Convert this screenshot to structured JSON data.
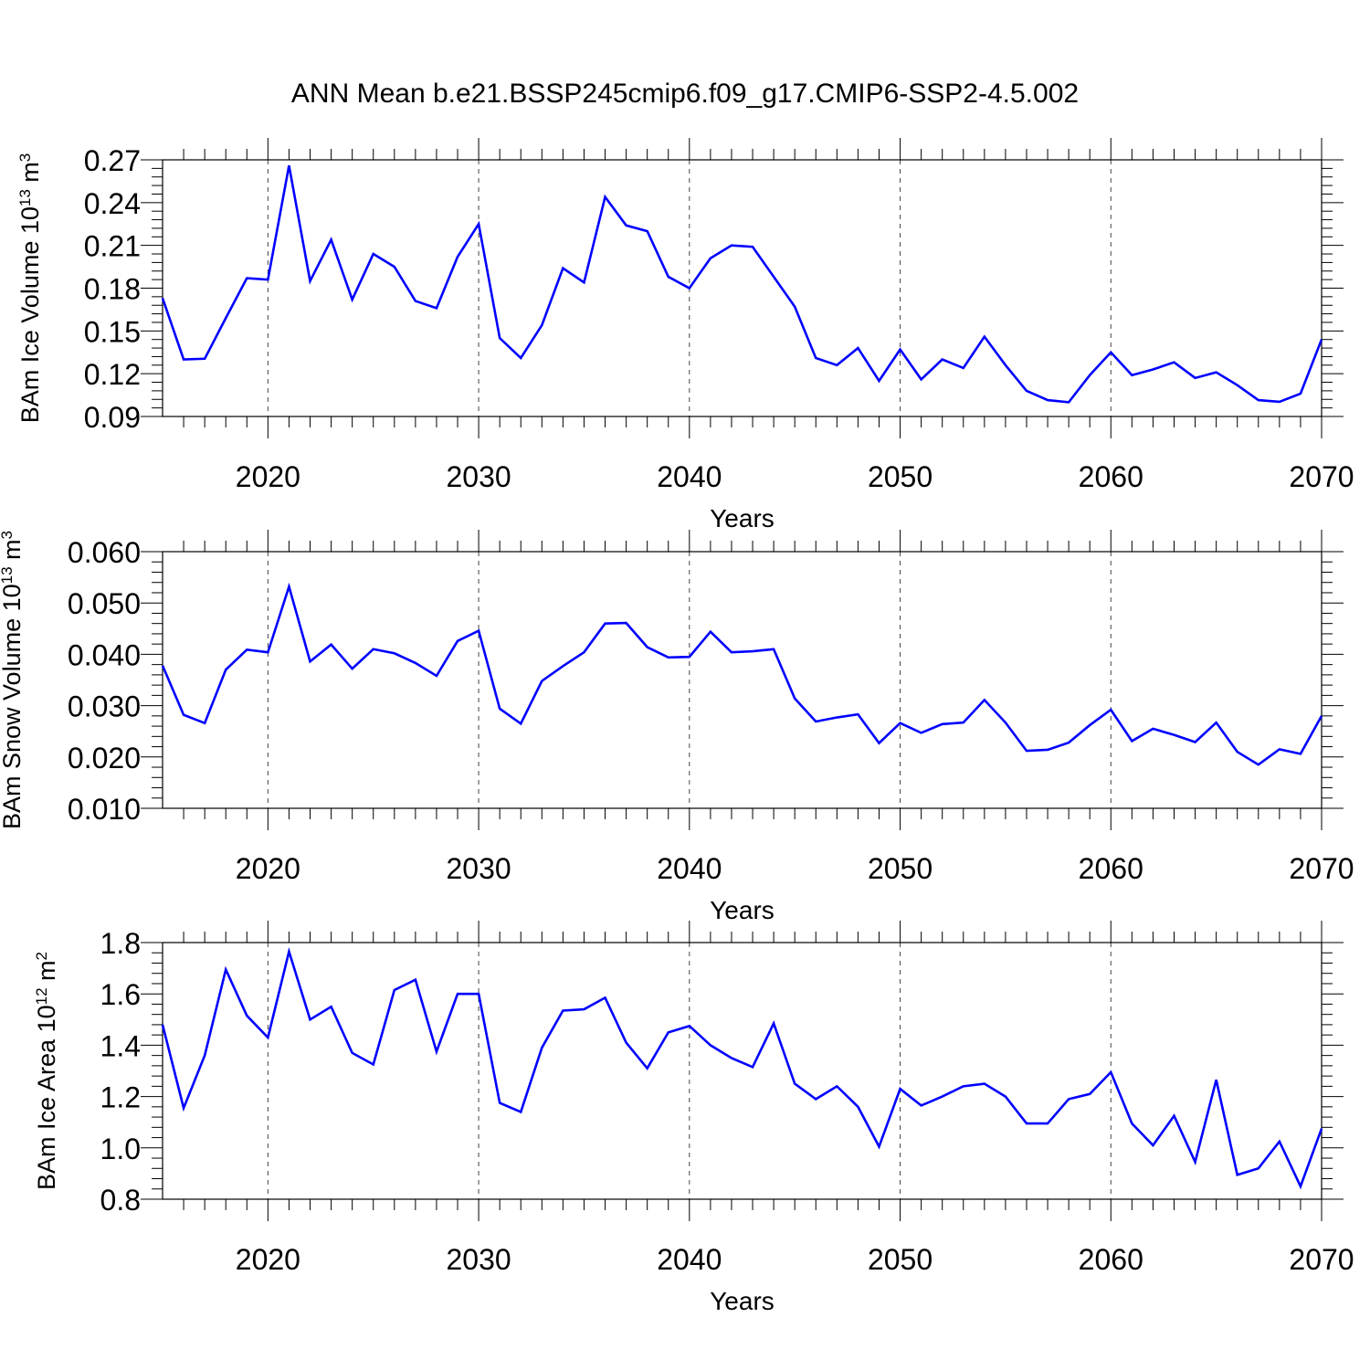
{
  "title": "ANN Mean b.e21.BSSP245cmip6.f09_g17.CMIP6-SSP2-4.5.002",
  "series_color": "#0000ff",
  "chart_data": [
    {
      "type": "line",
      "ylabel_main": "BAm Ice Volume 10",
      "ylabel_exp": "13",
      "ylabel_unit": " m",
      "ylabel_unit_exp": "3",
      "xlabel": "Years",
      "xlim": [
        2015,
        2070
      ],
      "ylim": [
        0.09,
        0.27
      ],
      "yticks": [
        0.09,
        0.12,
        0.15,
        0.18,
        0.21,
        0.24,
        0.27
      ],
      "ytick_labels": [
        "0.09",
        "0.12",
        "0.15",
        "0.18",
        "0.21",
        "0.24",
        "0.27"
      ],
      "xticks": [
        2020,
        2030,
        2040,
        2050,
        2060,
        2070
      ],
      "xtick_labels": [
        "2020",
        "2030",
        "2040",
        "2050",
        "2060",
        "2070"
      ],
      "grid": "vertical dashed at major x ticks",
      "x": [
        2015,
        2016,
        2017,
        2018,
        2019,
        2020,
        2021,
        2022,
        2023,
        2024,
        2025,
        2026,
        2027,
        2028,
        2029,
        2030,
        2031,
        2032,
        2033,
        2034,
        2035,
        2036,
        2037,
        2038,
        2039,
        2040,
        2041,
        2042,
        2043,
        2044,
        2045,
        2046,
        2047,
        2048,
        2049,
        2050,
        2051,
        2052,
        2053,
        2054,
        2055,
        2056,
        2057,
        2058,
        2059,
        2060,
        2061,
        2062,
        2063,
        2064,
        2065,
        2066,
        2067,
        2068,
        2069,
        2070
      ],
      "values": [
        0.173,
        0.13,
        0.1305,
        0.159,
        0.187,
        0.186,
        0.266,
        0.185,
        0.214,
        0.172,
        0.204,
        0.195,
        0.171,
        0.166,
        0.202,
        0.225,
        0.145,
        0.131,
        0.154,
        0.194,
        0.184,
        0.244,
        0.224,
        0.22,
        0.188,
        0.18,
        0.201,
        0.21,
        0.209,
        0.188,
        0.167,
        0.131,
        0.126,
        0.138,
        0.115,
        0.137,
        0.116,
        0.13,
        0.124,
        0.146,
        0.126,
        0.108,
        0.1015,
        0.1,
        0.119,
        0.135,
        0.119,
        0.123,
        0.128,
        0.117,
        0.121,
        0.112,
        0.1015,
        0.1003,
        0.106,
        0.144
      ]
    },
    {
      "type": "line",
      "ylabel_main": "BAm Snow Volume 10",
      "ylabel_exp": "13",
      "ylabel_unit": " m",
      "ylabel_unit_exp": "3",
      "xlabel": "Years",
      "xlim": [
        2015,
        2070
      ],
      "ylim": [
        0.01,
        0.06
      ],
      "yticks": [
        0.01,
        0.02,
        0.03,
        0.04,
        0.05,
        0.06
      ],
      "ytick_labels": [
        "0.010",
        "0.020",
        "0.030",
        "0.040",
        "0.050",
        "0.060"
      ],
      "xticks": [
        2020,
        2030,
        2040,
        2050,
        2060,
        2070
      ],
      "xtick_labels": [
        "2020",
        "2030",
        "2040",
        "2050",
        "2060",
        "2070"
      ],
      "grid": "vertical dashed at major x ticks",
      "x": [
        2015,
        2016,
        2017,
        2018,
        2019,
        2020,
        2021,
        2022,
        2023,
        2024,
        2025,
        2026,
        2027,
        2028,
        2029,
        2030,
        2031,
        2032,
        2033,
        2034,
        2035,
        2036,
        2037,
        2038,
        2039,
        2040,
        2041,
        2042,
        2043,
        2044,
        2045,
        2046,
        2047,
        2048,
        2049,
        2050,
        2051,
        2052,
        2053,
        2054,
        2055,
        2056,
        2057,
        2058,
        2059,
        2060,
        2061,
        2062,
        2063,
        2064,
        2065,
        2066,
        2067,
        2068,
        2069,
        2070
      ],
      "values": [
        0.0378,
        0.0282,
        0.0266,
        0.037,
        0.0409,
        0.0404,
        0.0532,
        0.0386,
        0.0419,
        0.0372,
        0.041,
        0.0402,
        0.0383,
        0.0358,
        0.0426,
        0.0446,
        0.0294,
        0.0265,
        0.0348,
        0.0377,
        0.0404,
        0.046,
        0.0461,
        0.0414,
        0.0394,
        0.0395,
        0.0444,
        0.0404,
        0.0406,
        0.041,
        0.0314,
        0.0269,
        0.0277,
        0.0283,
        0.0227,
        0.0266,
        0.0247,
        0.0264,
        0.0267,
        0.0311,
        0.0267,
        0.0212,
        0.0214,
        0.0228,
        0.0262,
        0.0292,
        0.0231,
        0.0255,
        0.0243,
        0.0229,
        0.0267,
        0.021,
        0.0185,
        0.0215,
        0.0206,
        0.028
      ]
    },
    {
      "type": "line",
      "ylabel_main": "BAm Ice Area 10",
      "ylabel_exp": "12",
      "ylabel_unit": " m",
      "ylabel_unit_exp": "2",
      "xlabel": "Years",
      "xlim": [
        2015,
        2070
      ],
      "ylim": [
        0.8,
        1.8
      ],
      "yticks": [
        0.8,
        1.0,
        1.2,
        1.4,
        1.6,
        1.8
      ],
      "ytick_labels": [
        "0.8",
        "1.0",
        "1.2",
        "1.4",
        "1.6",
        "1.8"
      ],
      "xticks": [
        2020,
        2030,
        2040,
        2050,
        2060,
        2070
      ],
      "xtick_labels": [
        "2020",
        "2030",
        "2040",
        "2050",
        "2060",
        "2070"
      ],
      "grid": "vertical dashed at major x ticks",
      "x": [
        2015,
        2016,
        2017,
        2018,
        2019,
        2020,
        2021,
        2022,
        2023,
        2024,
        2025,
        2026,
        2027,
        2028,
        2029,
        2030,
        2031,
        2032,
        2033,
        2034,
        2035,
        2036,
        2037,
        2038,
        2039,
        2040,
        2041,
        2042,
        2043,
        2044,
        2045,
        2046,
        2047,
        2048,
        2049,
        2050,
        2051,
        2052,
        2053,
        2054,
        2055,
        2056,
        2057,
        2058,
        2059,
        2060,
        2061,
        2062,
        2063,
        2064,
        2065,
        2066,
        2067,
        2068,
        2069,
        2070
      ],
      "values": [
        1.48,
        1.155,
        1.36,
        1.695,
        1.515,
        1.43,
        1.765,
        1.5,
        1.55,
        1.37,
        1.325,
        1.615,
        1.655,
        1.375,
        1.6,
        1.6,
        1.175,
        1.14,
        1.39,
        1.535,
        1.54,
        1.585,
        1.41,
        1.31,
        1.45,
        1.475,
        1.4,
        1.35,
        1.315,
        1.485,
        1.25,
        1.19,
        1.24,
        1.16,
        1.005,
        1.23,
        1.165,
        1.2,
        1.24,
        1.25,
        1.2,
        1.095,
        1.095,
        1.19,
        1.21,
        1.295,
        1.095,
        1.01,
        1.125,
        0.945,
        1.265,
        0.895,
        0.92,
        1.025,
        0.85,
        1.075
      ]
    }
  ]
}
